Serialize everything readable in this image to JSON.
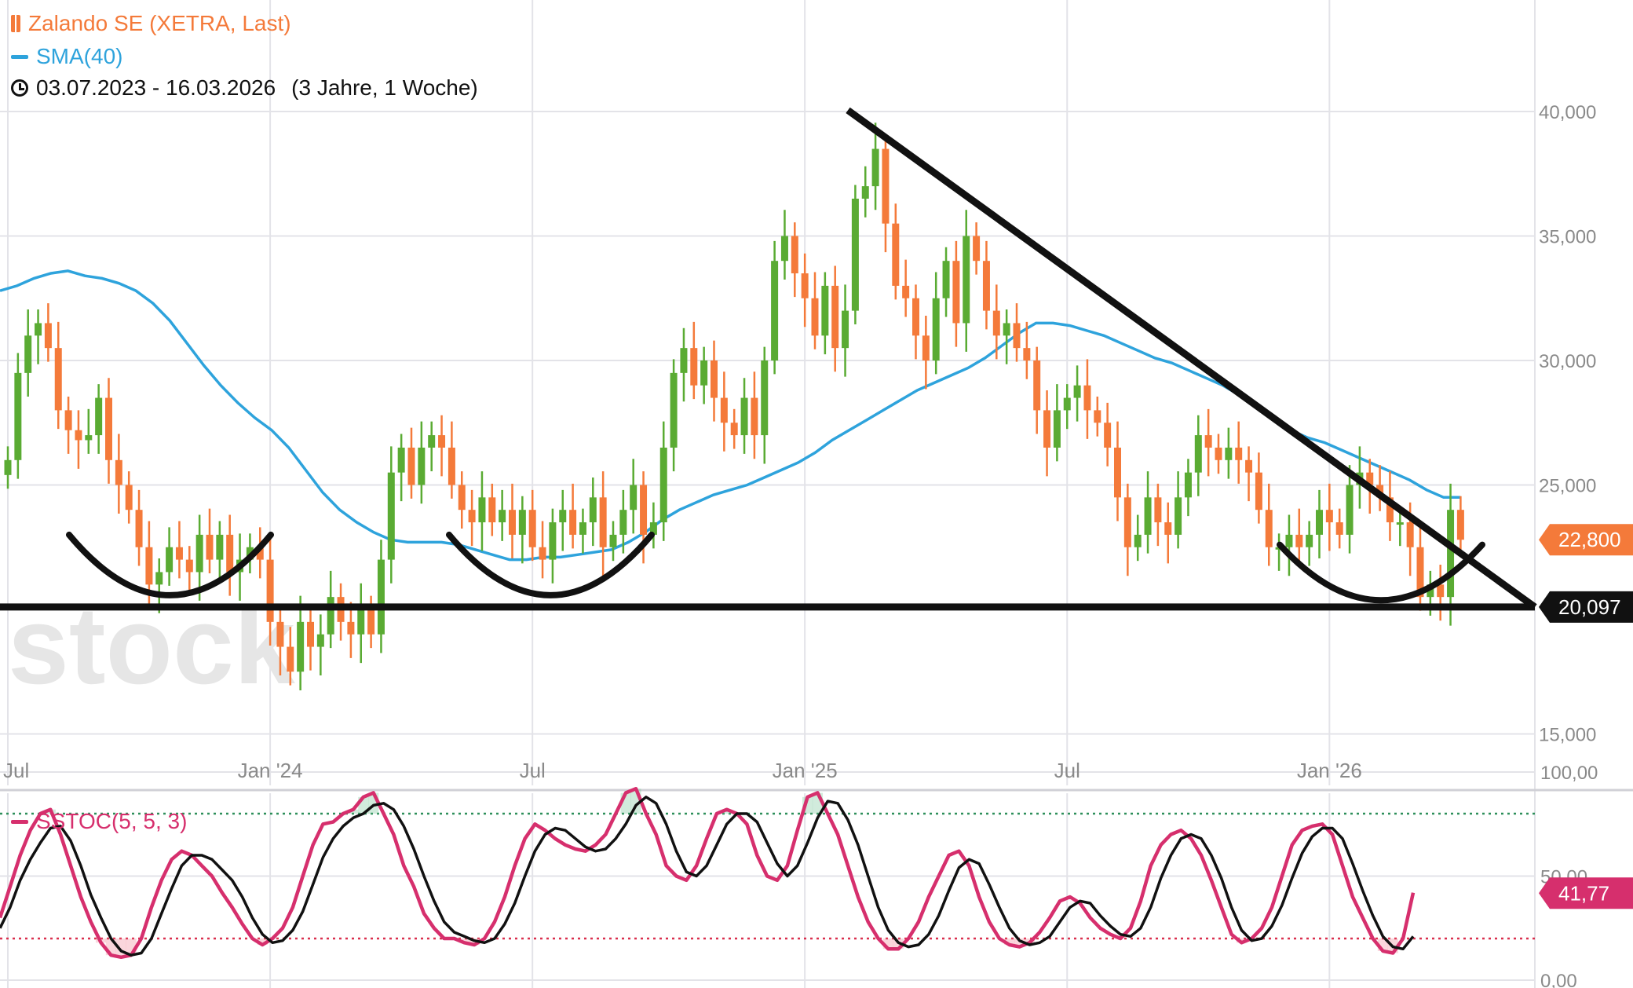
{
  "legend": {
    "instrument": "Zalando SE (XETRA, Last)",
    "sma": "SMA(40)",
    "period": "03.07.2023 - 16.03.2026",
    "period_note": "(3 Jahre, 1 Woche)",
    "oscillator": "SSTOC(5, 5, 3)"
  },
  "watermark": "stock",
  "colors": {
    "up": "#5aab33",
    "down": "#f47a3a",
    "sma": "#2ea3dc",
    "stoch_k": "#d62f6d",
    "stoch_d": "#111111",
    "upper_band": "#2d8f5a",
    "lower_band": "#d9304f",
    "trendline": "#111111",
    "grid": "#e3e3e8"
  },
  "chart_data": [
    {
      "type": "candlestick",
      "title": "Zalando SE (XETRA, Last)",
      "date_range": "03.07.2023 - 16.03.2026",
      "y_ticks": [
        "40,000",
        "35,000",
        "30,000",
        "25,000",
        "15,000"
      ],
      "y_tick_values": [
        40,
        35,
        30,
        25,
        15
      ],
      "ylim": [
        13.6,
        41.6
      ],
      "x_ticks": [
        "Jul",
        "Jan '24",
        "Jul",
        "Jan '25",
        "Jul",
        "Jan '26"
      ],
      "x_tick_weeks": [
        0,
        26,
        52,
        79,
        105,
        131
      ],
      "last_price_label": "22,800",
      "last_price": 22.8,
      "support_label": "20,097",
      "support_level": 20.097,
      "close": [
        26.0,
        29.5,
        31.0,
        31.5,
        30.5,
        28.0,
        27.2,
        26.8,
        27.0,
        28.5,
        26.0,
        25.0,
        24.0,
        22.5,
        21.0,
        21.5,
        22.5,
        22.0,
        21.5,
        23.0,
        22.0,
        23.0,
        21.5,
        22.0,
        22.5,
        22.0,
        19.5,
        18.5,
        17.5,
        19.5,
        18.5,
        19.0,
        20.5,
        19.5,
        19.0,
        20.0,
        19.0,
        22.0,
        25.5,
        26.5,
        25.0,
        26.5,
        27.0,
        26.5,
        25.0,
        24.0,
        23.5,
        24.5,
        23.5,
        24.0,
        23.0,
        24.0,
        22.5,
        22.0,
        23.5,
        24.0,
        23.0,
        23.5,
        24.5,
        22.5,
        23.0,
        24.0,
        25.0,
        23.0,
        23.5,
        26.5,
        29.5,
        30.5,
        29.0,
        30.0,
        28.5,
        27.5,
        27.0,
        28.5,
        27.0,
        30.0,
        34.0,
        35.0,
        33.5,
        32.5,
        31.0,
        33.0,
        30.5,
        32.0,
        36.5,
        37.0,
        38.5,
        35.5,
        33.0,
        32.5,
        31.0,
        30.0,
        32.5,
        34.0,
        31.5,
        35.0,
        34.0,
        32.0,
        31.0,
        31.5,
        30.5,
        30.0,
        28.0,
        26.5,
        28.0,
        28.5,
        29.0,
        28.0,
        27.5,
        26.5,
        24.5,
        22.5,
        23.0,
        24.5,
        23.5,
        23.0,
        24.5,
        25.5,
        27.0,
        26.5,
        26.0,
        26.5,
        26.0,
        25.5,
        24.0,
        22.5,
        22.5,
        23.0,
        22.5,
        23.0,
        24.0,
        23.5,
        23.0,
        25.0,
        25.5,
        25.0,
        24.5,
        23.5,
        23.5,
        22.5,
        20.5,
        21.0,
        20.5,
        24.0,
        22.8
      ],
      "series": [
        {
          "name": "SMA(40)",
          "values": [
            32.8,
            33.0,
            33.3,
            33.5,
            33.6,
            33.4,
            33.3,
            33.1,
            32.8,
            32.3,
            31.6,
            30.7,
            29.8,
            29.0,
            28.3,
            27.7,
            27.2,
            26.5,
            25.6,
            24.7,
            24.0,
            23.5,
            23.1,
            22.8,
            22.7,
            22.7,
            22.7,
            22.6,
            22.4,
            22.2,
            22.0,
            22.0,
            22.1,
            22.1,
            22.2,
            22.3,
            22.4,
            22.7,
            23.1,
            23.6,
            24.0,
            24.3,
            24.6,
            24.8,
            25.0,
            25.3,
            25.6,
            25.9,
            26.3,
            26.8,
            27.2,
            27.6,
            28.0,
            28.4,
            28.8,
            29.1,
            29.4,
            29.7,
            30.1,
            30.6,
            31.1,
            31.5,
            31.5,
            31.4,
            31.2,
            31.0,
            30.7,
            30.4,
            30.1,
            29.9,
            29.6,
            29.3,
            29.0,
            28.6,
            28.1,
            27.6,
            27.2,
            26.9,
            26.7,
            26.4,
            26.1,
            25.8,
            25.5,
            25.2,
            24.8,
            24.5,
            24.5
          ]
        }
      ]
    },
    {
      "type": "line",
      "title": "SSTOC(5, 5, 3)",
      "y_ticks": [
        "100,00",
        "50,00",
        "0,00"
      ],
      "y_tick_values": [
        100,
        50,
        0
      ],
      "ylim": [
        0,
        100
      ],
      "upper_band": 80,
      "lower_band": 20,
      "last_value_label": "41,77",
      "last_value": 41.77,
      "series": [
        {
          "name": "%K",
          "values": [
            30,
            45,
            60,
            72,
            80,
            82,
            70,
            55,
            40,
            28,
            18,
            12,
            11,
            12,
            20,
            35,
            48,
            58,
            62,
            60,
            55,
            50,
            42,
            35,
            27,
            20,
            17,
            20,
            25,
            35,
            50,
            65,
            75,
            76,
            80,
            82,
            88,
            90,
            80,
            70,
            55,
            45,
            32,
            25,
            20,
            20,
            18,
            17,
            20,
            28,
            40,
            55,
            68,
            75,
            72,
            68,
            65,
            63,
            62,
            65,
            70,
            80,
            90,
            92,
            80,
            70,
            55,
            50,
            48,
            55,
            68,
            80,
            82,
            80,
            75,
            60,
            50,
            48,
            55,
            72,
            88,
            90,
            80,
            70,
            55,
            40,
            28,
            20,
            15,
            15,
            20,
            28,
            40,
            50,
            60,
            62,
            55,
            40,
            28,
            20,
            17,
            16,
            18,
            23,
            30,
            38,
            40,
            37,
            30,
            25,
            22,
            20,
            25,
            38,
            55,
            65,
            70,
            72,
            68,
            60,
            48,
            35,
            22,
            18,
            20,
            25,
            35,
            50,
            65,
            72,
            74,
            75,
            70,
            55,
            40,
            30,
            20,
            14,
            13,
            20,
            42
          ]
        },
        {
          "name": "%D",
          "values": [
            25,
            35,
            48,
            58,
            66,
            73,
            74,
            67,
            55,
            41,
            30,
            20,
            14,
            12,
            13,
            20,
            32,
            44,
            55,
            60,
            60,
            58,
            53,
            48,
            40,
            30,
            22,
            18,
            19,
            24,
            33,
            46,
            59,
            68,
            74,
            78,
            80,
            84,
            85,
            82,
            74,
            63,
            50,
            38,
            28,
            23,
            21,
            19,
            18,
            20,
            27,
            37,
            50,
            62,
            70,
            73,
            72,
            68,
            64,
            62,
            63,
            68,
            75,
            84,
            88,
            85,
            75,
            62,
            52,
            50,
            55,
            65,
            75,
            80,
            80,
            76,
            66,
            56,
            50,
            55,
            66,
            78,
            86,
            85,
            77,
            65,
            50,
            35,
            24,
            18,
            16,
            17,
            22,
            31,
            43,
            54,
            58,
            56,
            46,
            35,
            25,
            19,
            17,
            18,
            21,
            28,
            35,
            38,
            37,
            31,
            26,
            22,
            21,
            25,
            35,
            49,
            60,
            68,
            70,
            68,
            60,
            49,
            35,
            24,
            19,
            20,
            26,
            36,
            49,
            61,
            69,
            73,
            73,
            68,
            56,
            43,
            31,
            21,
            16,
            15,
            21
          ]
        }
      ]
    }
  ]
}
